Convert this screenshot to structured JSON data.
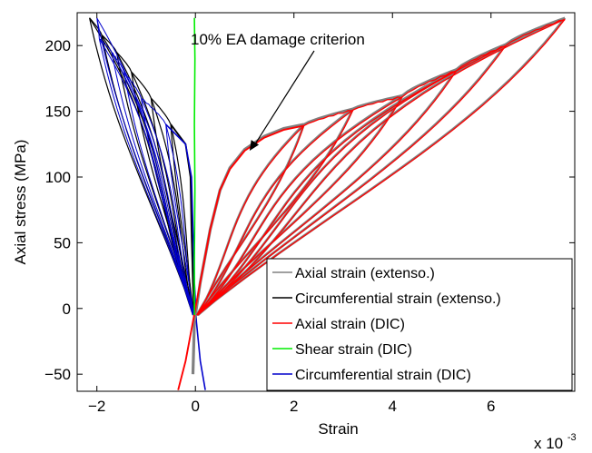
{
  "chart_data": {
    "type": "line",
    "title": "",
    "xlabel": "Strain",
    "ylabel": "Axial stress (MPa)",
    "x_scale_label": "x 10",
    "x_scale_exponent": "-3",
    "xlim": [
      -2.4,
      7.7
    ],
    "ylim": [
      -63,
      225
    ],
    "xticks": [
      -2,
      0,
      2,
      4,
      6
    ],
    "xtick_labels": [
      "−2",
      "0",
      "2",
      "4",
      "6"
    ],
    "yticks": [
      -50,
      0,
      50,
      100,
      150,
      200
    ],
    "ytick_labels": [
      "−50",
      "0",
      "50",
      "100",
      "150",
      "200"
    ],
    "grid": false,
    "legend_position": "bottom-right",
    "annotation": {
      "text": "10% EA damage criterion",
      "target": [
        1.1,
        120
      ]
    },
    "series": [
      {
        "name": "Axial strain (extenso.)",
        "color": "#808080",
        "peaks": [
          [
            2.2,
            140
          ],
          [
            3.2,
            152
          ],
          [
            4.2,
            162
          ],
          [
            5.3,
            182
          ],
          [
            6.3,
            201
          ],
          [
            7.5,
            221
          ]
        ],
        "envelope": [
          [
            -0.05,
            -50
          ],
          [
            -0.02,
            -10
          ],
          [
            0.1,
            20
          ],
          [
            0.3,
            60
          ],
          [
            0.5,
            90
          ],
          [
            0.7,
            107
          ],
          [
            1.0,
            121
          ],
          [
            1.4,
            131
          ],
          [
            1.8,
            137
          ],
          [
            2.2,
            140
          ]
        ]
      },
      {
        "name": "Circumferential strain (extenso.)",
        "color": "#000000",
        "peaks": [
          [
            -0.5,
            140
          ],
          [
            -0.9,
            160
          ],
          [
            -1.3,
            180
          ],
          [
            -1.6,
            195
          ],
          [
            -1.9,
            208
          ],
          [
            -2.15,
            221
          ]
        ],
        "envelope": [
          [
            -0.02,
            -10
          ],
          [
            -0.05,
            20
          ],
          [
            -0.08,
            60
          ],
          [
            -0.1,
            100
          ],
          [
            -0.2,
            125
          ],
          [
            -0.5,
            140
          ]
        ]
      },
      {
        "name": "Axial strain (DIC)",
        "color": "#ff0000",
        "peaks": [
          [
            2.2,
            139
          ],
          [
            3.2,
            151
          ],
          [
            4.2,
            161
          ],
          [
            5.3,
            181
          ],
          [
            6.3,
            200
          ],
          [
            7.5,
            220
          ]
        ],
        "envelope": [
          [
            -0.35,
            -62
          ],
          [
            -0.2,
            -40
          ],
          [
            -0.05,
            -10
          ],
          [
            0.1,
            20
          ],
          [
            0.3,
            60
          ],
          [
            0.5,
            90
          ],
          [
            0.7,
            106
          ],
          [
            1.0,
            120
          ],
          [
            1.4,
            130
          ],
          [
            1.8,
            136
          ],
          [
            2.2,
            139
          ]
        ]
      },
      {
        "name": "Shear strain (DIC)",
        "color": "#00ee00",
        "points": [
          [
            -0.02,
            -5
          ],
          [
            -0.02,
            40
          ],
          [
            -0.01,
            90
          ],
          [
            -0.02,
            140
          ],
          [
            -0.01,
            190
          ],
          [
            -0.02,
            221
          ]
        ]
      },
      {
        "name": "Circumferential strain (DIC)",
        "color": "#0000cc",
        "peaks": [
          [
            -0.6,
            140
          ],
          [
            -1.1,
            160
          ],
          [
            -1.45,
            180
          ],
          [
            -1.7,
            195
          ],
          [
            -1.95,
            205
          ],
          [
            -2.0,
            221
          ]
        ],
        "envelope": [
          [
            0.2,
            -62
          ],
          [
            0.1,
            -40
          ],
          [
            0.02,
            -10
          ],
          [
            -0.02,
            20
          ],
          [
            -0.05,
            60
          ],
          [
            -0.08,
            100
          ],
          [
            -0.2,
            125
          ],
          [
            -0.6,
            140
          ]
        ]
      }
    ]
  }
}
